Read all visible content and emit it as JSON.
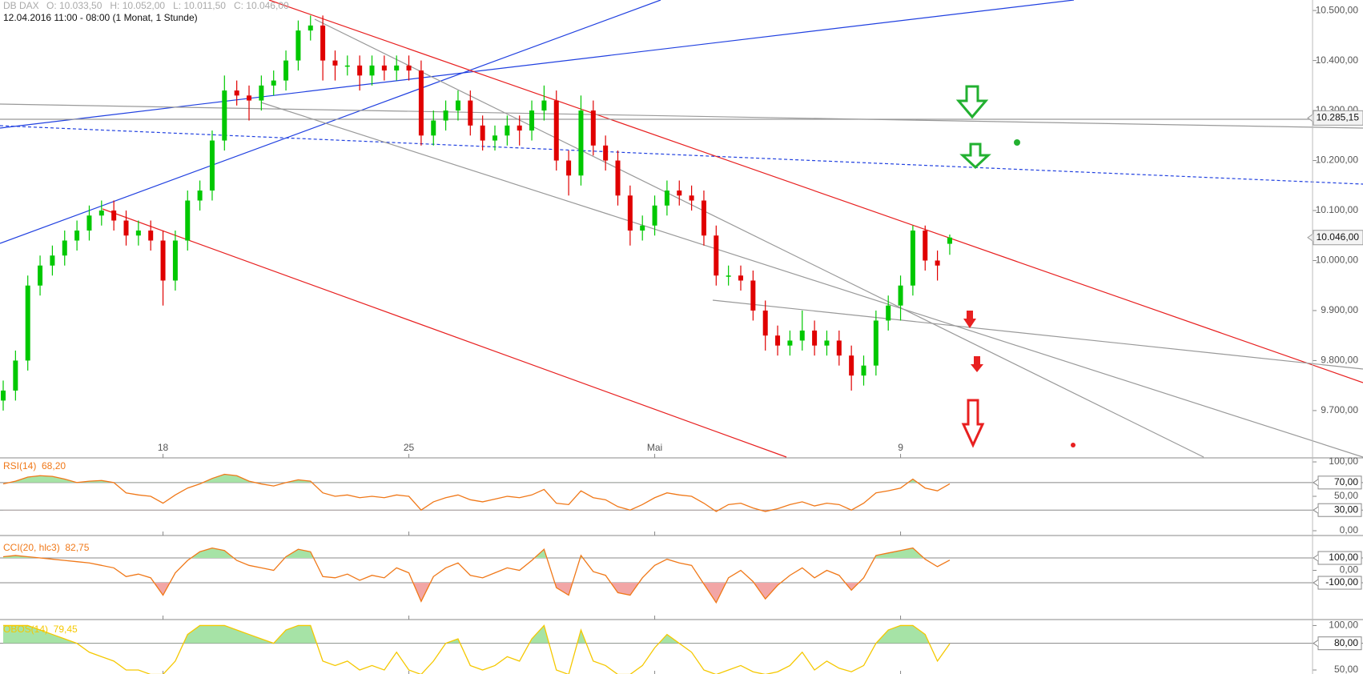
{
  "chart_data": [
    {
      "type": "candlestick",
      "title": "DB DAX",
      "ohlc_label": "O: 10.033,50   H: 10.052,00   L: 10.011,50   C: 10.046,00",
      "subtitle": "12.04.2016 11:00 - 08:00 (1 Monat, 1 Stunde)",
      "up_color": "#00c800",
      "down_color": "#e00000",
      "categories": [
        null,
        null,
        null,
        null,
        null,
        null,
        null,
        null,
        null,
        null,
        null,
        null,
        null,
        "18",
        null,
        null,
        null,
        null,
        null,
        null,
        null,
        null,
        null,
        null,
        null,
        null,
        null,
        null,
        null,
        null,
        null,
        null,
        null,
        "25",
        null,
        null,
        null,
        null,
        null,
        null,
        null,
        null,
        null,
        null,
        null,
        null,
        null,
        null,
        null,
        null,
        null,
        null,
        null,
        "Mai",
        null,
        null,
        null,
        null,
        null,
        null,
        null,
        null,
        null,
        null,
        null,
        null,
        null,
        null,
        null,
        null,
        null,
        null,
        null,
        "9",
        null,
        null,
        null,
        null
      ],
      "open": [
        9720,
        9740,
        9800,
        9950,
        9990,
        10010,
        10040,
        10060,
        10090,
        10100,
        10080,
        10050,
        10060,
        10040,
        9960,
        10040,
        10120,
        10140,
        10240,
        10340,
        10330,
        10320,
        10350,
        10360,
        10400,
        10460,
        10470,
        10400,
        10390,
        10390,
        10370,
        10390,
        10380,
        10390,
        10380,
        10250,
        10280,
        10300,
        10320,
        10270,
        10240,
        10250,
        10270,
        10260,
        10300,
        10320,
        10200,
        10170,
        10300,
        10230,
        10200,
        10130,
        10060,
        10070,
        10110,
        10140,
        10130,
        10120,
        10050,
        9970,
        9970,
        9960,
        9900,
        9850,
        9830,
        9840,
        9860,
        9830,
        9840,
        9810,
        9770,
        9790,
        9880,
        9910,
        9950,
        10060,
        10000,
        10033.5
      ],
      "high": [
        9760,
        9820,
        9970,
        10010,
        10030,
        10060,
        10080,
        10110,
        10120,
        10120,
        10100,
        10080,
        10080,
        10060,
        10060,
        10140,
        10160,
        10260,
        10370,
        10360,
        10350,
        10370,
        10380,
        10420,
        10480,
        10490,
        10490,
        10420,
        10410,
        10410,
        10410,
        10410,
        10410,
        10410,
        10400,
        10300,
        10320,
        10340,
        10340,
        10290,
        10270,
        10290,
        10290,
        10320,
        10350,
        10340,
        10220,
        10330,
        10320,
        10250,
        10220,
        10150,
        10090,
        10130,
        10160,
        10160,
        10150,
        10140,
        10070,
        9990,
        9990,
        9980,
        9920,
        9870,
        9860,
        9900,
        9880,
        9860,
        9860,
        9830,
        9810,
        9900,
        9930,
        9970,
        10070,
        10070,
        10020,
        10052
      ],
      "low": [
        9700,
        9720,
        9780,
        9930,
        9970,
        9990,
        10020,
        10040,
        10070,
        10060,
        10030,
        10030,
        10020,
        9910,
        9940,
        10020,
        10100,
        10120,
        10220,
        10310,
        10280,
        10300,
        10330,
        10340,
        10380,
        10440,
        10360,
        10360,
        10370,
        10340,
        10350,
        10360,
        10360,
        10360,
        10230,
        10230,
        10260,
        10280,
        10250,
        10220,
        10220,
        10230,
        10230,
        10240,
        10280,
        10180,
        10130,
        10150,
        10210,
        10180,
        10110,
        10030,
        10040,
        10050,
        10090,
        10110,
        10100,
        10030,
        9950,
        9950,
        9940,
        9880,
        9820,
        9810,
        9810,
        9820,
        9810,
        9810,
        9790,
        9740,
        9750,
        9770,
        9860,
        9880,
        9930,
        9980,
        9960,
        10011.5
      ],
      "close": [
        9740,
        9800,
        9950,
        9990,
        10010,
        10040,
        10060,
        10090,
        10100,
        10080,
        10050,
        10060,
        10040,
        9960,
        10040,
        10120,
        10140,
        10240,
        10340,
        10330,
        10320,
        10350,
        10360,
        10400,
        10460,
        10470,
        10400,
        10390,
        10390,
        10370,
        10390,
        10380,
        10390,
        10380,
        10250,
        10280,
        10300,
        10320,
        10270,
        10240,
        10250,
        10270,
        10260,
        10300,
        10320,
        10200,
        10170,
        10300,
        10230,
        10200,
        10130,
        10060,
        10070,
        10110,
        10140,
        10130,
        10120,
        10050,
        9970,
        9970,
        9960,
        9900,
        9850,
        9830,
        9840,
        9860,
        9830,
        9840,
        9810,
        9770,
        9790,
        9880,
        9910,
        9950,
        10060,
        10000,
        9990,
        10046
      ],
      "ylim": [
        9607,
        10521
      ],
      "yticks": [
        {
          "value": 9700,
          "label": "9.700,00"
        },
        {
          "value": 9800,
          "label": "9.800,00"
        },
        {
          "value": 9900,
          "label": "9.900,00"
        },
        {
          "value": 10000,
          "label": "10.000,00"
        },
        {
          "value": 10100,
          "label": "10.100,00"
        },
        {
          "value": 10200,
          "label": "10.200,00"
        },
        {
          "value": 10300,
          "label": "10.300,00"
        },
        {
          "value": 10400,
          "label": "10.400,00"
        },
        {
          "value": 10500,
          "label": "10.500,00"
        }
      ],
      "markers": [
        {
          "value": 10285.15,
          "label": "10.285,15"
        },
        {
          "value": 10046,
          "label": "10.046,00"
        }
      ]
    },
    {
      "type": "line",
      "title": "RSI(14)  68,20",
      "color": "#f07818",
      "values": [
        68,
        72,
        78,
        80,
        79,
        75,
        70,
        72,
        73,
        70,
        55,
        52,
        50,
        40,
        52,
        62,
        68,
        76,
        82,
        80,
        72,
        68,
        65,
        70,
        74,
        72,
        55,
        50,
        52,
        48,
        50,
        48,
        52,
        50,
        30,
        42,
        48,
        52,
        45,
        42,
        46,
        50,
        48,
        52,
        60,
        40,
        38,
        58,
        48,
        45,
        35,
        30,
        38,
        48,
        55,
        52,
        50,
        40,
        28,
        38,
        40,
        33,
        28,
        32,
        38,
        42,
        36,
        40,
        38,
        30,
        40,
        55,
        58,
        62,
        75,
        62,
        58,
        68.2
      ],
      "ylim": [
        -5.8,
        104.7
      ],
      "yticks": [
        {
          "value": 100,
          "label": "100,00"
        },
        {
          "value": 70,
          "label": "70,00",
          "boxed": true
        },
        {
          "value": 50,
          "label": "50,00"
        },
        {
          "value": 30,
          "label": "30,00",
          "boxed": true
        },
        {
          "value": 0,
          "label": "0,00"
        }
      ],
      "fills": [
        {
          "above": 70,
          "color": "#a6e3a6"
        },
        {
          "below": 30,
          "color": "#f2a6a6"
        }
      ]
    },
    {
      "type": "line",
      "title": "CCI(20, hlc3)  82,75",
      "color": "#f07818",
      "values": [
        110,
        120,
        110,
        100,
        90,
        80,
        70,
        60,
        40,
        20,
        -50,
        -30,
        -60,
        -200,
        -20,
        80,
        150,
        180,
        160,
        80,
        40,
        20,
        0,
        110,
        170,
        150,
        -50,
        -60,
        -30,
        -80,
        -40,
        -60,
        20,
        -20,
        -250,
        -50,
        20,
        60,
        -40,
        -60,
        -20,
        20,
        0,
        80,
        170,
        -140,
        -200,
        120,
        -10,
        -40,
        -180,
        -200,
        -60,
        40,
        90,
        60,
        40,
        -110,
        -260,
        -60,
        0,
        -90,
        -230,
        -120,
        -40,
        20,
        -60,
        0,
        -40,
        -160,
        -60,
        120,
        140,
        160,
        180,
        90,
        30,
        82.75
      ],
      "ylim": [
        -390,
        242
      ],
      "yticks": [
        {
          "value": 100,
          "label": "100,00",
          "boxed": true
        },
        {
          "value": 0,
          "label": "0,00"
        },
        {
          "value": -100,
          "label": "-100,00",
          "boxed": true
        }
      ],
      "fills": [
        {
          "above": 100,
          "color": "#a6e3a6"
        },
        {
          "below": -100,
          "color": "#f2a6a6"
        }
      ]
    },
    {
      "type": "line",
      "title": "OBOS(14)  79,45",
      "color": "#f5c800",
      "values": [
        100,
        100,
        100,
        95,
        90,
        85,
        80,
        70,
        65,
        60,
        50,
        50,
        45,
        45,
        60,
        90,
        100,
        100,
        100,
        95,
        90,
        85,
        80,
        95,
        100,
        100,
        60,
        55,
        60,
        50,
        55,
        50,
        70,
        50,
        45,
        60,
        80,
        85,
        55,
        50,
        55,
        65,
        60,
        85,
        100,
        50,
        45,
        95,
        60,
        55,
        45,
        45,
        55,
        75,
        90,
        80,
        70,
        50,
        45,
        50,
        55,
        48,
        45,
        48,
        55,
        70,
        50,
        60,
        52,
        48,
        55,
        80,
        95,
        100,
        100,
        90,
        60,
        79.45
      ],
      "ylim": [
        45.5,
        104
      ],
      "yticks": [
        {
          "value": 100,
          "label": "100,00"
        },
        {
          "value": 80,
          "label": "80,00",
          "boxed": true
        },
        {
          "value": 50,
          "label": "50,00"
        }
      ],
      "fills": [
        {
          "above": 80,
          "color": "#a6e3a6"
        }
      ]
    }
  ]
}
